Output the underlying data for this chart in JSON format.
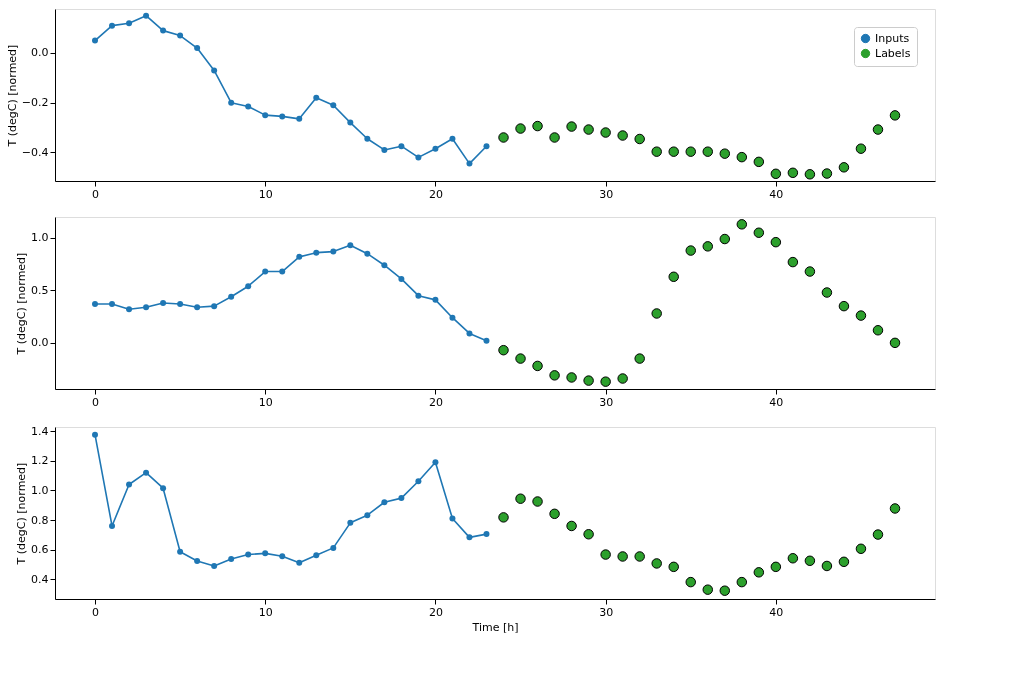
{
  "chart_data": [
    {
      "type": "line",
      "ylabel": "T (degC) [normed]",
      "legend": "top right",
      "marker": "circle",
      "xlim": [
        -2.35,
        49.35
      ],
      "xticks": [
        0,
        10,
        20,
        30,
        40
      ],
      "ylim": [
        -0.515,
        0.177
      ],
      "yticks": [
        {
          "value": -0.4,
          "label": "−0.4"
        },
        {
          "value": -0.2,
          "label": "−0.2"
        },
        {
          "value": 0,
          "label": "0.0"
        }
      ],
      "series": [
        {
          "name": "Inputs",
          "color": "#1f77b4",
          "x": [
            0,
            1,
            2,
            3,
            4,
            5,
            6,
            7,
            8,
            9,
            10,
            11,
            12,
            13,
            14,
            15,
            16,
            17,
            18,
            19,
            20,
            21,
            22,
            23
          ],
          "values": [
            0.05,
            0.11,
            0.12,
            0.15,
            0.09,
            0.07,
            0.02,
            -0.07,
            -0.2,
            -0.215,
            -0.25,
            -0.255,
            -0.265,
            -0.18,
            -0.21,
            -0.28,
            -0.345,
            -0.39,
            -0.375,
            -0.42,
            -0.385,
            -0.345,
            -0.445,
            -0.375
          ]
        },
        {
          "name": "Labels",
          "type": "scatter",
          "color": "#2ca02c",
          "x": [
            24,
            25,
            26,
            27,
            28,
            29,
            30,
            31,
            32,
            33,
            34,
            35,
            36,
            37,
            38,
            39,
            40,
            41,
            42,
            43,
            44,
            45,
            46,
            47
          ],
          "values": [
            -0.34,
            -0.304,
            -0.294,
            -0.34,
            -0.296,
            -0.308,
            -0.32,
            -0.332,
            -0.346,
            -0.397,
            -0.397,
            -0.397,
            -0.397,
            -0.405,
            -0.419,
            -0.438,
            -0.486,
            -0.482,
            -0.488,
            -0.485,
            -0.46,
            -0.385,
            -0.308,
            -0.251
          ]
        }
      ]
    },
    {
      "type": "line",
      "ylabel": "T (degC) [normed]",
      "marker": "circle",
      "xlim": [
        -2.35,
        49.35
      ],
      "xticks": [
        0,
        10,
        20,
        30,
        40
      ],
      "ylim": [
        -0.44,
        1.2
      ],
      "yticks": [
        {
          "value": 0,
          "label": "0.0"
        },
        0.5,
        {
          "value": 1,
          "label": "1.0"
        }
      ],
      "series": [
        {
          "color": "#1f77b4",
          "x": [
            0,
            1,
            2,
            3,
            4,
            5,
            6,
            7,
            8,
            9,
            10,
            11,
            12,
            13,
            14,
            15,
            16,
            17,
            18,
            19,
            20,
            21,
            22,
            23
          ],
          "values": [
            0.37,
            0.37,
            0.32,
            0.34,
            0.38,
            0.37,
            0.34,
            0.35,
            0.44,
            0.54,
            0.68,
            0.68,
            0.82,
            0.86,
            0.87,
            0.93,
            0.85,
            0.74,
            0.61,
            0.45,
            0.41,
            0.24,
            0.09,
            0.02
          ]
        },
        {
          "type": "scatter",
          "color": "#2ca02c",
          "x": [
            24,
            25,
            26,
            27,
            28,
            29,
            30,
            31,
            32,
            33,
            34,
            35,
            36,
            37,
            38,
            39,
            40,
            41,
            42,
            43,
            44,
            45,
            46,
            47
          ],
          "values": [
            -0.07,
            -0.15,
            -0.22,
            -0.31,
            -0.33,
            -0.36,
            -0.37,
            -0.34,
            -0.15,
            0.28,
            0.63,
            0.88,
            0.92,
            0.99,
            1.13,
            1.05,
            0.96,
            0.77,
            0.68,
            0.48,
            0.35,
            0.26,
            0.12,
            0.0
          ]
        }
      ]
    },
    {
      "type": "line",
      "ylabel": "T (degC) [normed]",
      "xlabel": "Time [h]",
      "marker": "circle",
      "xlim": [
        -2.35,
        49.35
      ],
      "xticks": [
        0,
        10,
        20,
        30,
        40
      ],
      "ylim": [
        0.267,
        1.428
      ],
      "yticks": [
        0.4,
        0.6,
        0.8,
        {
          "value": 1,
          "label": "1.0"
        },
        1.2,
        1.4
      ],
      "series": [
        {
          "color": "#1f77b4",
          "x": [
            0,
            1,
            2,
            3,
            4,
            5,
            6,
            7,
            8,
            9,
            10,
            11,
            12,
            13,
            14,
            15,
            16,
            17,
            18,
            19,
            20,
            21,
            22,
            23
          ],
          "values": [
            1.376,
            0.76,
            1.04,
            1.12,
            1.015,
            0.586,
            0.524,
            0.49,
            0.537,
            0.567,
            0.575,
            0.556,
            0.511,
            0.563,
            0.612,
            0.781,
            0.833,
            0.92,
            0.948,
            1.062,
            1.19,
            0.81,
            0.683,
            0.705
          ]
        },
        {
          "type": "scatter",
          "color": "#2ca02c",
          "x": [
            24,
            25,
            26,
            27,
            28,
            29,
            30,
            31,
            32,
            33,
            34,
            35,
            36,
            37,
            38,
            39,
            40,
            41,
            42,
            43,
            44,
            45,
            46,
            47
          ],
          "values": [
            0.818,
            0.944,
            0.925,
            0.842,
            0.76,
            0.704,
            0.567,
            0.554,
            0.554,
            0.507,
            0.484,
            0.381,
            0.33,
            0.323,
            0.381,
            0.447,
            0.484,
            0.542,
            0.525,
            0.49,
            0.518,
            0.606,
            0.702,
            0.878
          ]
        }
      ]
    }
  ]
}
